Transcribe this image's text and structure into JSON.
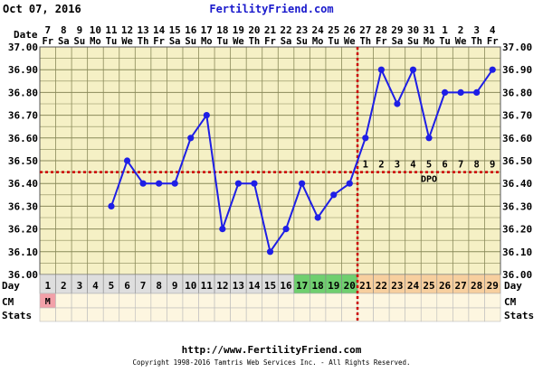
{
  "header": {
    "date": "Oct 07, 2016",
    "site": "FertilityFriend.com"
  },
  "footer": {
    "url": "http://www.FertilityFriend.com",
    "copyright": "Copyright 1998-2016 Tamtris Web Services Inc. - All Rights Reserved."
  },
  "row_labels": {
    "date": "Date",
    "day": "Day",
    "cm": "CM",
    "stats": "Stats"
  },
  "colors": {
    "plot_bg": "#f5f0c5",
    "grid": "#8a8a5a",
    "line": "#1e1ee6",
    "coverline": "#cc0000",
    "site_text": "#1a1acc",
    "menstruation": "#f2a0a8",
    "normal_day": "#dedede",
    "fertile_day": "#6fcf6f",
    "luteal_day": "#f7cf9f",
    "cm_cell": "#fdf6e0"
  },
  "chart_data": {
    "type": "line",
    "title": "",
    "xlabel": "Day",
    "ylabel": "",
    "ylim": [
      36.0,
      37.0
    ],
    "yticks": [
      "36.00",
      "36.10",
      "36.20",
      "36.30",
      "36.40",
      "36.50",
      "36.60",
      "36.70",
      "36.80",
      "36.90",
      "37.00"
    ],
    "dates": [
      "7",
      "8",
      "9",
      "10",
      "11",
      "12",
      "13",
      "14",
      "15",
      "16",
      "17",
      "18",
      "19",
      "20",
      "21",
      "22",
      "23",
      "24",
      "25",
      "26",
      "27",
      "28",
      "29",
      "30",
      "31",
      "1",
      "2",
      "3",
      "4"
    ],
    "weekdays": [
      "Fr",
      "Sa",
      "Su",
      "Mo",
      "Tu",
      "We",
      "Th",
      "Fr",
      "Sa",
      "Su",
      "Mo",
      "Tu",
      "We",
      "Th",
      "Fr",
      "Sa",
      "Su",
      "Mo",
      "Tu",
      "We",
      "Th",
      "Fr",
      "Sa",
      "Su",
      "Mo",
      "Tu",
      "We",
      "Th",
      "Fr"
    ],
    "cycle_days": [
      1,
      2,
      3,
      4,
      5,
      6,
      7,
      8,
      9,
      10,
      11,
      12,
      13,
      14,
      15,
      16,
      17,
      18,
      19,
      20,
      21,
      22,
      23,
      24,
      25,
      26,
      27,
      28,
      29
    ],
    "day_categories": [
      "menstruation",
      "normal",
      "normal",
      "normal",
      "normal",
      "normal",
      "normal",
      "normal",
      "normal",
      "normal",
      "normal",
      "normal",
      "normal",
      "normal",
      "normal",
      "normal",
      "fertile",
      "fertile",
      "fertile",
      "fertile",
      "luteal",
      "luteal",
      "luteal",
      "luteal",
      "luteal",
      "luteal",
      "luteal",
      "luteal",
      "luteal"
    ],
    "series": [
      {
        "values": [
          null,
          null,
          null,
          null,
          36.3,
          36.5,
          36.4,
          36.4,
          36.4,
          36.6,
          36.7,
          36.2,
          36.4,
          36.4,
          36.1,
          36.2,
          36.4,
          36.25,
          36.35,
          36.4,
          36.6,
          36.9,
          36.75,
          36.9,
          36.6,
          36.8,
          36.8,
          36.8,
          36.9
        ]
      }
    ],
    "coverline": 36.45,
    "ovulation_day": 20,
    "dpo_label": "DPO",
    "dpo": [
      1,
      2,
      3,
      4,
      5,
      6,
      7,
      8,
      9
    ],
    "cm": [
      "M",
      "",
      "",
      "",
      "",
      "",
      "",
      "",
      "",
      "",
      "",
      "",
      "",
      "",
      "",
      "",
      "",
      "",
      "",
      "",
      "",
      "",
      "",
      "",
      "",
      "",
      "",
      "",
      ""
    ],
    "grid": true
  }
}
